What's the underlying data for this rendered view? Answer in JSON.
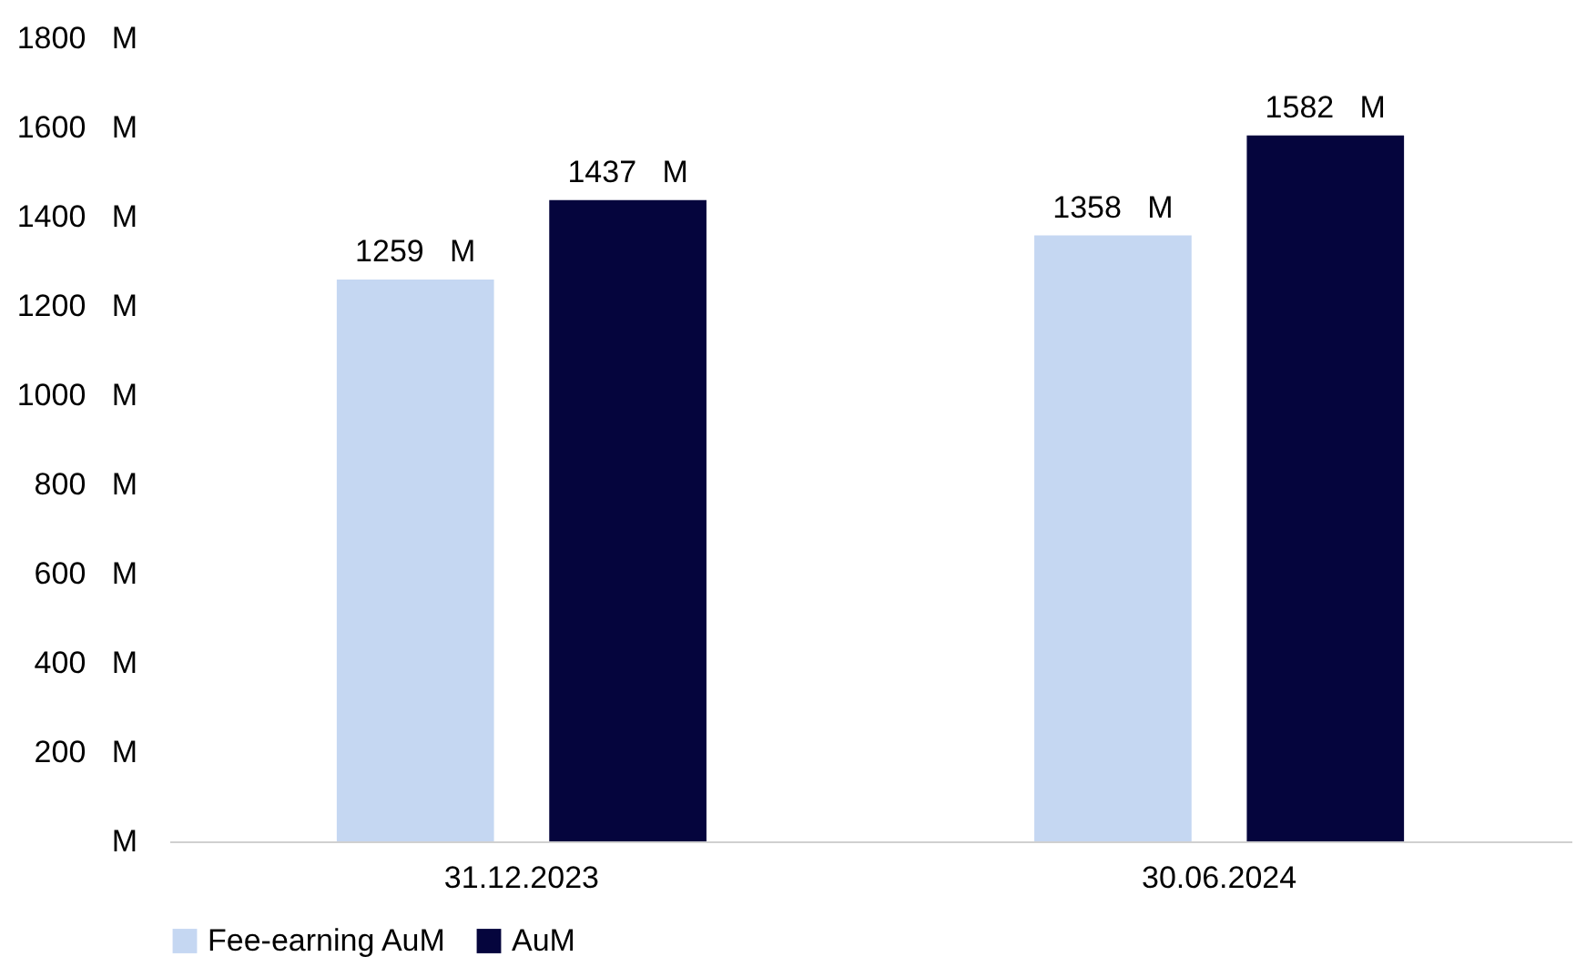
{
  "chart_data": {
    "type": "bar",
    "categories": [
      "31.12.2023",
      "30.06.2024"
    ],
    "series": [
      {
        "name": "Fee-earning AuM",
        "color": "#c5d7f2",
        "values": [
          1259,
          1358
        ],
        "value_labels": [
          "1259   M",
          "1358   M"
        ]
      },
      {
        "name": "AuM",
        "color": "#05053d",
        "values": [
          1437,
          1582
        ],
        "value_labels": [
          "1437   M",
          "1582   M"
        ]
      }
    ],
    "ylim": [
      0,
      1800
    ],
    "yticks": [
      {
        "value": 0,
        "label": "M"
      },
      {
        "value": 200,
        "label": "200   M"
      },
      {
        "value": 400,
        "label": "400   M"
      },
      {
        "value": 600,
        "label": "600   M"
      },
      {
        "value": 800,
        "label": "800   M"
      },
      {
        "value": 1000,
        "label": "1000   M"
      },
      {
        "value": 1200,
        "label": "1200   M"
      },
      {
        "value": 1400,
        "label": "1400   M"
      },
      {
        "value": 1600,
        "label": "1600   M"
      },
      {
        "value": 1800,
        "label": "1800   M"
      }
    ],
    "grid": false,
    "legend": "bottom"
  }
}
